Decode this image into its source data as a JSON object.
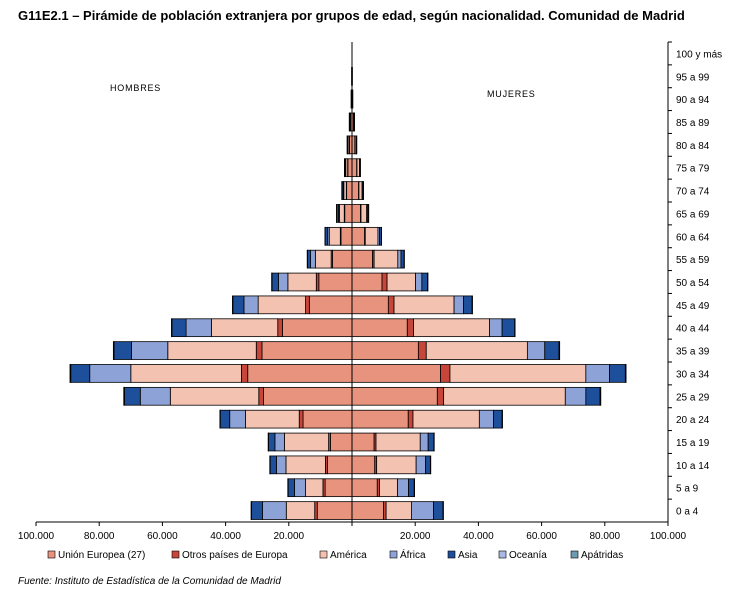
{
  "title": "G11E2.1 – Pirámide de población extranjera por grupos de edad, según nacionalidad. Comunidad de Madrid",
  "source": "Fuente: Instituto de Estadística de la Comunidad de Madrid",
  "colors": {
    "Unión Europea (27)": "#e8937e",
    "Otros países de Europa": "#c8453a",
    "América": "#f4c2b0",
    "África": "#8da3d8",
    "Asia": "#1e4f9a",
    "Oceanía": "#a9b9e3",
    "Apátridas": "#6a9db5"
  },
  "chart_data": {
    "type": "bar",
    "orientation": "horizontal",
    "subtype": "population-pyramid",
    "side_labels": {
      "left": "HOMBRES",
      "right": "MUJERES"
    },
    "categories": [
      "0 a 4",
      "5 a 9",
      "10 a 14",
      "15 a 19",
      "20 a 24",
      "25 a 29",
      "30 a 34",
      "35 a 39",
      "40 a 44",
      "45 a 49",
      "50 a 54",
      "55 a 59",
      "60 a 64",
      "65 a 69",
      "70 a 74",
      "75 a 79",
      "80 a 84",
      "85 a 89",
      "90 a 94",
      "95 a 99",
      "100 y más"
    ],
    "x_ticks": [
      "100.000",
      "80.000",
      "60.000",
      "40.000",
      "20.000",
      "20.000",
      "40.000",
      "60.000",
      "80.000",
      "100.000"
    ],
    "xlim": [
      -100000,
      100000
    ],
    "legend_position": "bottom",
    "series": [
      {
        "name": "Unión Europea (27)",
        "hombres": [
          11000,
          8500,
          7800,
          6800,
          15500,
          28000,
          33000,
          28500,
          22000,
          13500,
          10500,
          6200,
          3500,
          2300,
          1700,
          1300,
          800,
          500,
          150,
          50,
          20
        ],
        "mujeres": [
          10000,
          8000,
          7200,
          7000,
          17800,
          27000,
          28000,
          21000,
          17500,
          11500,
          9500,
          6500,
          4000,
          2700,
          2100,
          1500,
          900,
          500,
          150,
          50,
          20
        ]
      },
      {
        "name": "Otros países de Europa",
        "hombres": [
          800,
          700,
          600,
          600,
          1200,
          1500,
          2000,
          1800,
          1500,
          1200,
          800,
          400,
          200,
          150,
          100,
          80,
          50,
          30,
          10,
          5,
          2
        ],
        "mujeres": [
          800,
          700,
          600,
          600,
          1500,
          2000,
          3000,
          2500,
          2000,
          1800,
          1600,
          500,
          200,
          150,
          100,
          80,
          50,
          30,
          10,
          5,
          2
        ]
      },
      {
        "name": "América",
        "hombres": [
          9000,
          5500,
          12500,
          14000,
          17000,
          28000,
          35000,
          28000,
          21000,
          15000,
          9000,
          5000,
          3500,
          1500,
          800,
          600,
          400,
          200,
          50,
          10,
          5
        ],
        "mujeres": [
          8000,
          5700,
          12500,
          14000,
          21000,
          38500,
          43000,
          32000,
          24000,
          19000,
          9000,
          7500,
          4000,
          1800,
          1000,
          800,
          400,
          200,
          50,
          10,
          5
        ]
      },
      {
        "name": "África",
        "hombres": [
          7500,
          3500,
          3000,
          3000,
          5000,
          9500,
          13000,
          11500,
          8000,
          4500,
          3000,
          1500,
          500,
          300,
          200,
          100,
          50,
          20,
          5,
          2,
          1
        ],
        "mujeres": [
          7000,
          3500,
          3000,
          2500,
          4500,
          6500,
          7500,
          5500,
          4000,
          3000,
          2000,
          1000,
          500,
          200,
          100,
          50,
          30,
          10,
          5,
          2,
          1
        ]
      },
      {
        "name": "Asia",
        "hombres": [
          3500,
          2000,
          2000,
          2000,
          3000,
          5000,
          6000,
          5500,
          4500,
          3500,
          2000,
          1000,
          800,
          600,
          400,
          300,
          200,
          100,
          30,
          5,
          2
        ],
        "mujeres": [
          3000,
          1800,
          1500,
          1800,
          2700,
          4500,
          5000,
          4500,
          4000,
          2700,
          1800,
          1000,
          600,
          400,
          300,
          200,
          100,
          50,
          10,
          3,
          1
        ]
      },
      {
        "name": "Oceanía",
        "hombres": [
          100,
          100,
          100,
          100,
          100,
          200,
          200,
          200,
          100,
          100,
          100,
          50,
          50,
          30,
          20,
          10,
          10,
          5,
          2,
          1,
          0
        ],
        "mujeres": [
          100,
          100,
          100,
          100,
          100,
          200,
          200,
          200,
          100,
          100,
          100,
          50,
          50,
          30,
          20,
          10,
          10,
          5,
          2,
          1,
          0
        ]
      },
      {
        "name": "Apátridas",
        "hombres": [
          10,
          10,
          10,
          10,
          10,
          20,
          20,
          20,
          10,
          10,
          10,
          5,
          5,
          2,
          2,
          1,
          1,
          0,
          0,
          0,
          0
        ],
        "mujeres": [
          10,
          10,
          10,
          10,
          10,
          20,
          20,
          20,
          10,
          10,
          10,
          5,
          5,
          2,
          2,
          1,
          1,
          0,
          0,
          0,
          0
        ]
      }
    ]
  }
}
